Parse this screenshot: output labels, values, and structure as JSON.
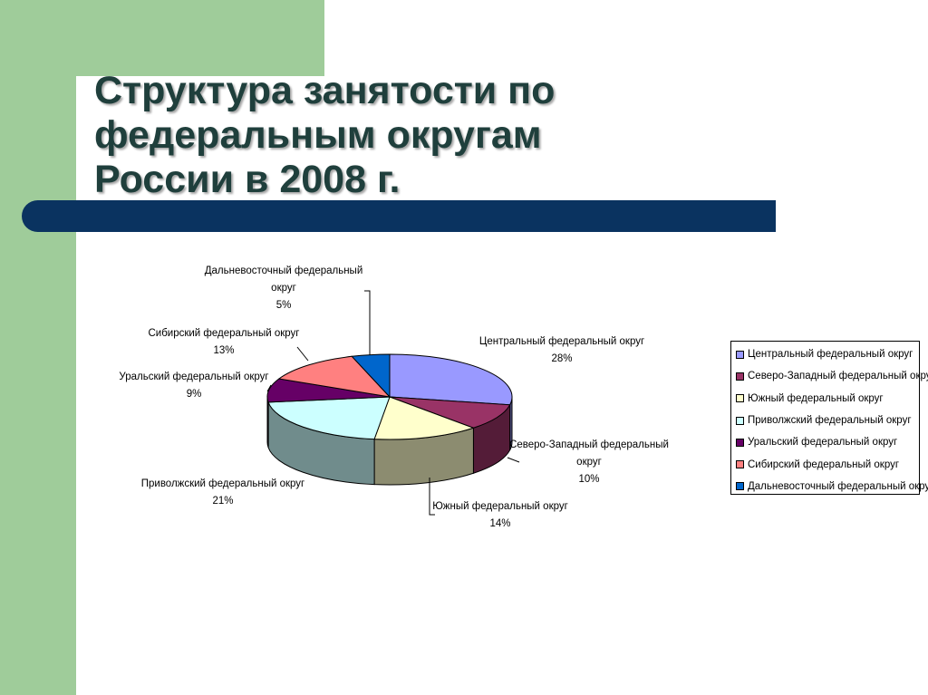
{
  "slide": {
    "title": "Структура занятости по\nфедеральным округам\nРоссии в 2008 г."
  },
  "chart_data": {
    "type": "pie",
    "title": "",
    "percent_suffix": "%",
    "categories": [
      "Центральный федеральный округ",
      "Северо-Западный федеральный округ",
      "Южный федеральный округ",
      "Приволжский федеральный округ",
      "Уральский федеральный округ",
      "Сибирский федеральный округ",
      "Дальневосточный федеральный округ"
    ],
    "values": [
      28,
      10,
      14,
      21,
      9,
      13,
      5
    ],
    "colors": [
      "#9999ff",
      "#993366",
      "#ffffcc",
      "#ccffff",
      "#660066",
      "#ff8080",
      "#0066cc"
    ],
    "legend": "right",
    "style": "3d"
  }
}
